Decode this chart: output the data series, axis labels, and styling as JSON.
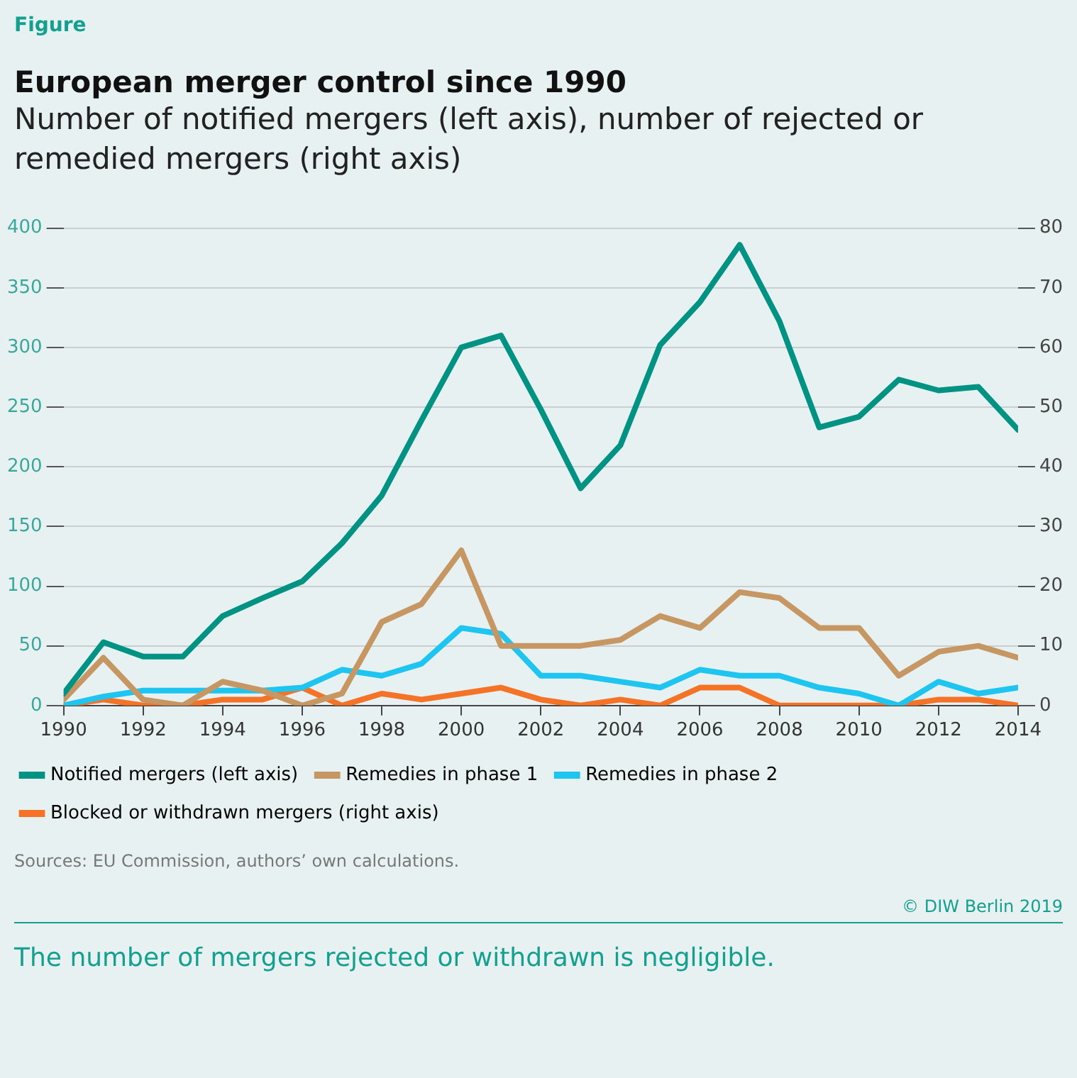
{
  "chart_data": {
    "type": "line",
    "title": "European merger control since 1990",
    "subtitle": "Number of notified mergers (left axis), number of rejected or remedied mergers (right axis)",
    "annotations": [
      "Figure",
      "Sources: EU Commission, authors’ own calculations.",
      "© DIW Berlin 2019",
      "The number of mergers rejected or withdrawn is negligible."
    ],
    "x": [
      1990,
      1991,
      1992,
      1993,
      1994,
      1995,
      1996,
      1997,
      1998,
      1999,
      2000,
      2001,
      2002,
      2003,
      2004,
      2005,
      2006,
      2007,
      2008,
      2009,
      2010,
      2011,
      2012,
      2013,
      2014
    ],
    "series": [
      {
        "name": "Notified mergers (left axis)",
        "color": "#009384",
        "values": [
          10,
          53,
          41,
          41,
          75,
          90,
          104,
          136,
          176,
          239,
          300,
          310,
          248,
          182,
          218,
          302,
          338,
          386,
          322,
          233,
          242,
          273,
          264,
          267,
          231
        ]
      },
      {
        "name": "Remedies in phase 1",
        "color": "#c69763",
        "axis": "y2",
        "values": [
          1,
          8,
          1,
          0,
          4,
          2.5,
          0,
          2,
          14,
          17,
          26,
          10,
          10,
          10,
          11,
          15,
          13,
          19,
          18,
          13,
          13,
          5,
          9,
          10,
          8
        ]
      },
      {
        "name": "Remedies in phase 2",
        "color": "#1ec5f0",
        "axis": "y2",
        "values": [
          0,
          1.5,
          2.5,
          2.5,
          2.5,
          2.5,
          3,
          6,
          5,
          7,
          13,
          12,
          5,
          5,
          4,
          3,
          6,
          5,
          5,
          3,
          2,
          0,
          4,
          2,
          3
        ]
      },
      {
        "name": "Blocked or withdrawn mergers (right axis)",
        "color": "#f57327",
        "axis": "y2",
        "values": [
          0,
          1,
          0,
          0,
          1,
          1,
          3,
          0,
          2,
          1,
          2,
          3,
          1,
          0,
          1,
          0,
          3,
          3,
          0,
          0,
          0,
          0,
          1,
          1,
          0
        ]
      }
    ],
    "xlim": [
      1990,
      2014
    ],
    "xticks": [
      1990,
      1992,
      1994,
      1996,
      1998,
      2000,
      2002,
      2004,
      2006,
      2008,
      2010,
      2012,
      2014
    ],
    "ylim": [
      0,
      400
    ],
    "yticks": [
      0,
      50,
      100,
      150,
      200,
      250,
      300,
      350,
      400
    ],
    "y2lim": [
      0,
      80
    ],
    "y2ticks": [
      0,
      10,
      20,
      30,
      40,
      50,
      60,
      70,
      80
    ],
    "grid": "y",
    "legend": "bottom",
    "marker": "none",
    "line_style": "solid"
  }
}
